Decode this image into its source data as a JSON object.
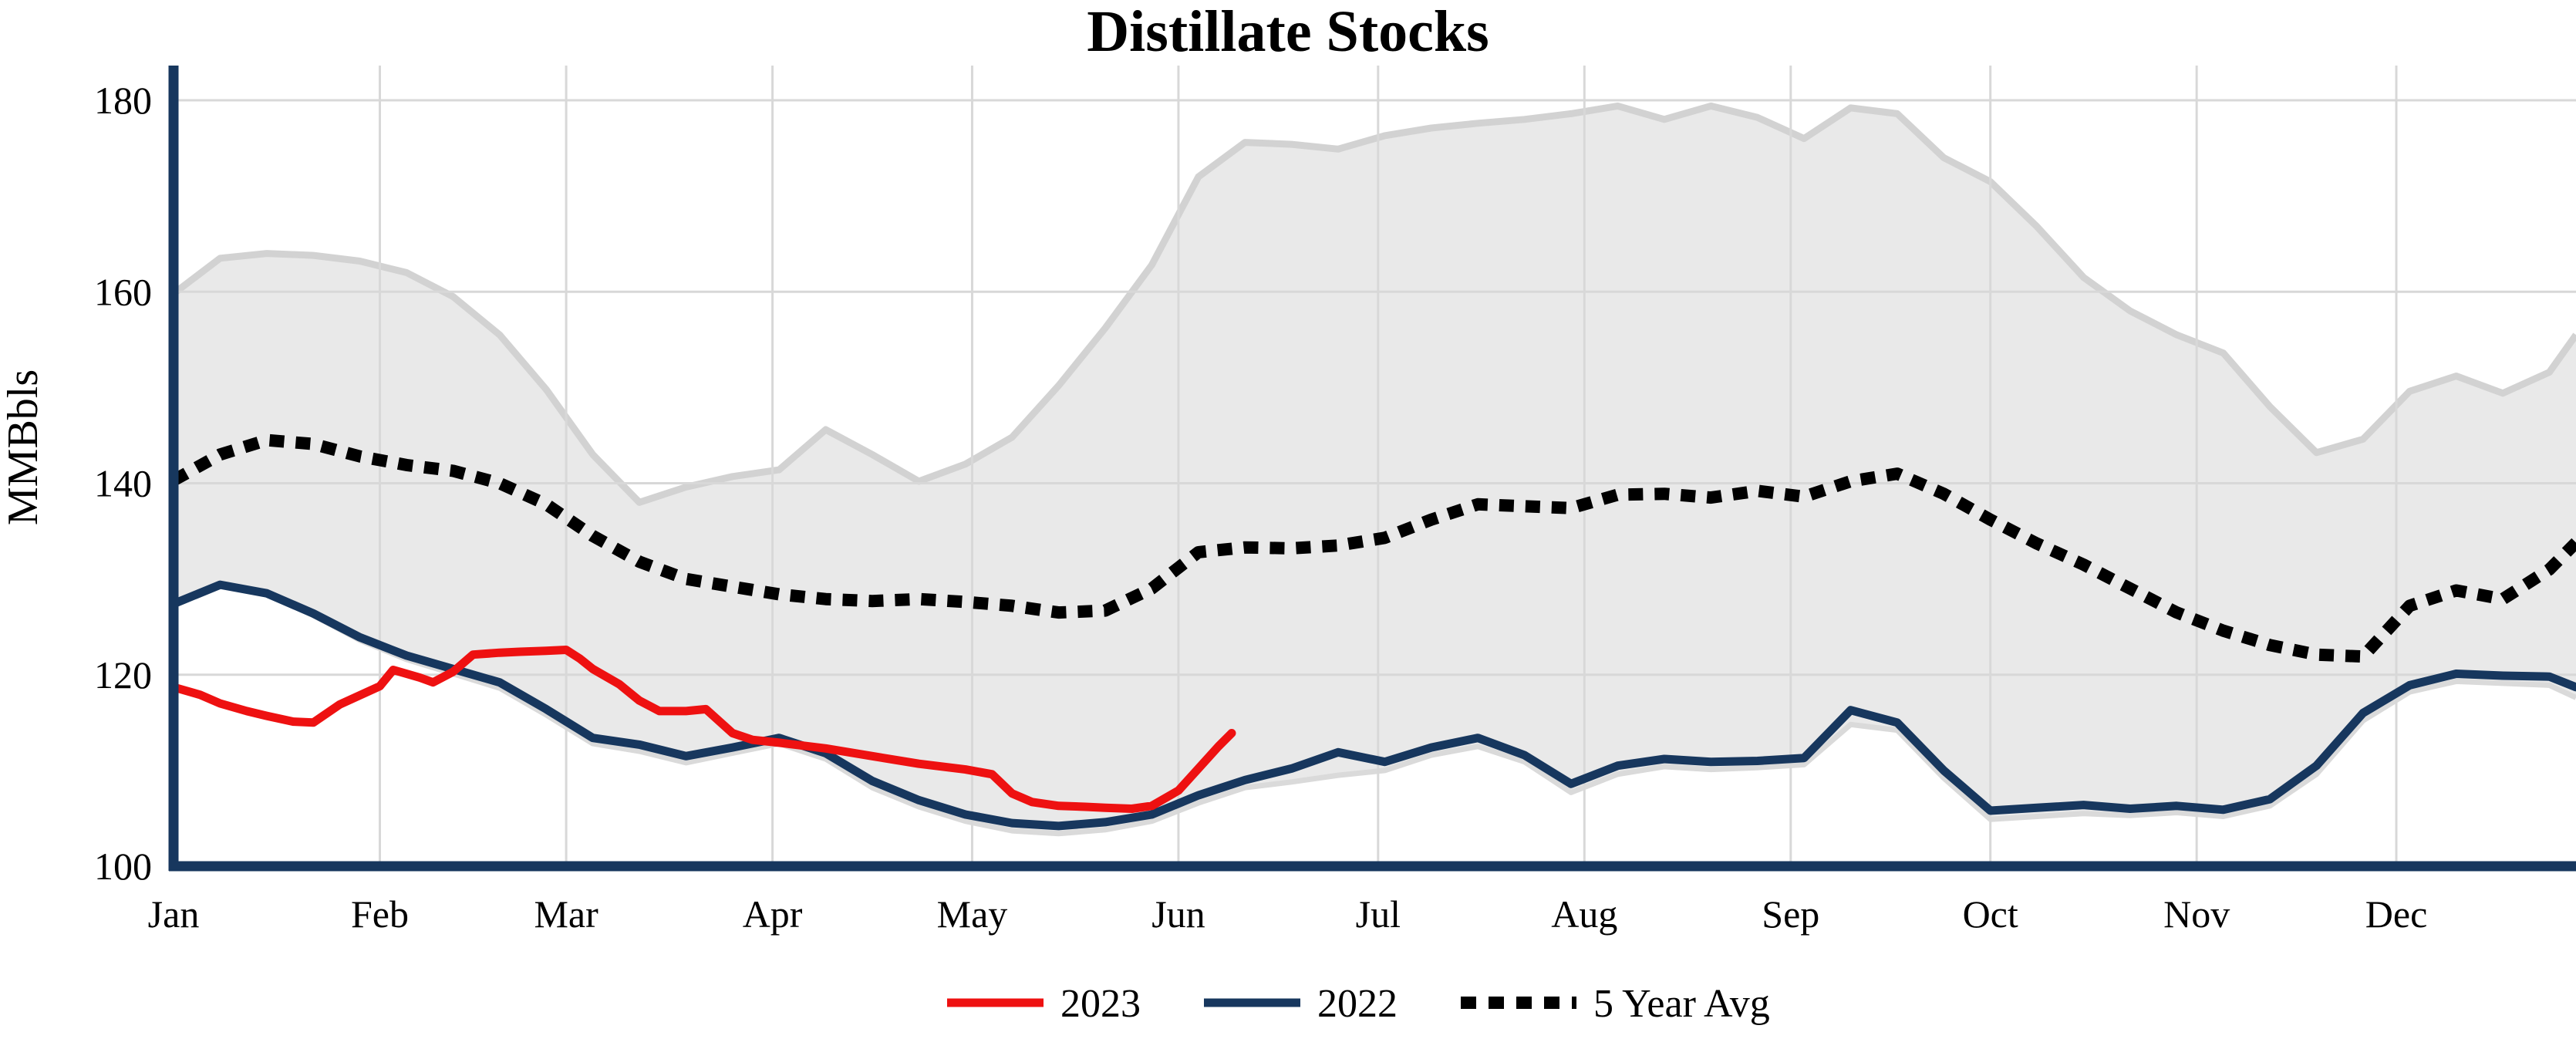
{
  "title": "Distillate Stocks",
  "y_axis": {
    "label": "MMBbls",
    "ticks": [
      100,
      120,
      140,
      160,
      180
    ],
    "min": 100,
    "max": 180
  },
  "x_axis": {
    "labels": [
      "Jan",
      "Feb",
      "Mar",
      "Apr",
      "May",
      "Jun",
      "Jul",
      "Aug",
      "Sep",
      "Oct",
      "Nov",
      "Dec"
    ],
    "month_start_days": [
      1,
      32,
      60,
      91,
      121,
      152,
      182,
      213,
      244,
      274,
      305,
      335
    ],
    "domain_days": [
      1,
      362
    ]
  },
  "legend": [
    {
      "label": "2023",
      "color": "#ee1111",
      "style": "solid"
    },
    {
      "label": "2022",
      "color": "#17375e",
      "style": "solid"
    },
    {
      "label": "5 Year Avg",
      "color": "#000000",
      "style": "dotted"
    }
  ],
  "colors": {
    "red": "#ee1111",
    "navy": "#17375e",
    "avg_dotted": "#000000",
    "band_fill": "#e9e9e9",
    "band_edge_top": "#d2d2d2",
    "band_edge_bottom": "#dadada",
    "grid": "#d8d8d8",
    "axis": "#17375e",
    "background": "#ffffff",
    "text": "#000000"
  },
  "chart_data": {
    "type": "line",
    "title": "Distillate Stocks",
    "xlabel": "",
    "ylabel": "MMBbls",
    "ylim": [
      100,
      180
    ],
    "yticks": [
      100,
      120,
      140,
      160,
      180
    ],
    "x_unit": "day_of_year",
    "xlim": [
      1,
      362
    ],
    "month_ticks": {
      "labels": [
        "Jan",
        "Feb",
        "Mar",
        "Apr",
        "May",
        "Jun",
        "Jul",
        "Aug",
        "Sep",
        "Oct",
        "Nov",
        "Dec"
      ],
      "days": [
        1,
        32,
        60,
        91,
        121,
        152,
        182,
        213,
        244,
        274,
        305,
        335
      ]
    },
    "grid": true,
    "legend_position": "bottom",
    "series": [
      {
        "name": "5 Year Range",
        "kind": "band",
        "x": [
          1,
          8,
          15,
          22,
          29,
          36,
          43,
          50,
          57,
          64,
          71,
          78,
          85,
          92,
          99,
          106,
          113,
          120,
          127,
          134,
          141,
          148,
          155,
          162,
          169,
          176,
          183,
          190,
          197,
          204,
          211,
          218,
          225,
          232,
          239,
          246,
          253,
          260,
          267,
          274,
          281,
          288,
          295,
          302,
          309,
          316,
          323,
          330,
          337,
          344,
          351,
          358,
          362
        ],
        "upper": [
          159.8,
          163.5,
          164.0,
          163.8,
          163.2,
          162.0,
          159.5,
          155.5,
          149.8,
          143.0,
          138.0,
          139.6,
          140.7,
          141.4,
          145.6,
          143.0,
          140.2,
          142.0,
          144.8,
          150.2,
          156.2,
          162.8,
          172.0,
          175.6,
          175.4,
          174.9,
          176.3,
          177.1,
          177.6,
          178.0,
          178.6,
          179.4,
          178.0,
          179.4,
          178.2,
          176.0,
          179.2,
          178.6,
          174.0,
          171.5,
          166.8,
          161.5,
          158.0,
          155.5,
          153.6,
          148.0,
          143.2,
          144.6,
          149.6,
          151.2,
          149.4,
          151.6,
          155.5
        ],
        "lower": [
          127.2,
          129.3,
          128.4,
          126.2,
          123.6,
          121.6,
          120.1,
          118.6,
          115.8,
          112.8,
          112.0,
          110.8,
          111.8,
          112.8,
          111.2,
          108.2,
          106.2,
          104.7,
          103.7,
          103.4,
          103.8,
          104.7,
          106.6,
          108.2,
          108.8,
          109.5,
          110.0,
          111.6,
          112.5,
          110.9,
          107.7,
          109.6,
          110.4,
          110.1,
          110.3,
          110.6,
          114.8,
          114.2,
          109.2,
          104.9,
          105.2,
          105.5,
          105.3,
          105.6,
          105.2,
          106.3,
          109.6,
          115.2,
          118.2,
          119.3,
          119.1,
          118.9,
          117.6
        ]
      },
      {
        "name": "5 Year Avg",
        "kind": "line",
        "style": "dotted",
        "color": "#000000",
        "x": [
          1,
          8,
          15,
          22,
          29,
          36,
          43,
          50,
          57,
          64,
          71,
          78,
          85,
          92,
          99,
          106,
          113,
          120,
          127,
          134,
          141,
          148,
          155,
          162,
          169,
          176,
          183,
          190,
          197,
          204,
          211,
          218,
          225,
          232,
          239,
          246,
          253,
          260,
          267,
          274,
          281,
          288,
          295,
          302,
          309,
          316,
          323,
          330,
          337,
          344,
          351,
          358,
          362
        ],
        "y": [
          140.3,
          143.0,
          144.5,
          144.1,
          142.8,
          141.9,
          141.3,
          140.0,
          137.8,
          134.5,
          131.8,
          130.0,
          129.2,
          128.4,
          127.9,
          127.7,
          127.9,
          127.6,
          127.2,
          126.5,
          126.7,
          129.0,
          132.8,
          133.3,
          133.2,
          133.5,
          134.3,
          136.2,
          137.8,
          137.6,
          137.4,
          138.8,
          138.9,
          138.5,
          139.2,
          138.6,
          140.2,
          141.0,
          138.9,
          136.2,
          133.7,
          131.5,
          129.0,
          126.5,
          124.6,
          123.1,
          122.1,
          121.9,
          127.2,
          128.8,
          127.9,
          131.0,
          133.8
        ]
      },
      {
        "name": "2022",
        "kind": "line",
        "style": "solid",
        "color": "#17375e",
        "x": [
          1,
          8,
          15,
          22,
          29,
          36,
          43,
          50,
          57,
          64,
          71,
          78,
          85,
          92,
          99,
          106,
          113,
          120,
          127,
          134,
          141,
          148,
          155,
          162,
          169,
          176,
          183,
          190,
          197,
          204,
          211,
          218,
          225,
          232,
          239,
          246,
          253,
          260,
          267,
          274,
          281,
          288,
          295,
          302,
          309,
          316,
          323,
          330,
          337,
          344,
          351,
          358,
          362
        ],
        "y": [
          127.4,
          129.4,
          128.5,
          126.4,
          123.9,
          122.0,
          120.6,
          119.2,
          116.4,
          113.4,
          112.7,
          111.5,
          112.4,
          113.4,
          111.8,
          108.9,
          106.9,
          105.4,
          104.5,
          104.2,
          104.6,
          105.4,
          107.4,
          109.0,
          110.2,
          111.9,
          110.9,
          112.4,
          113.4,
          111.6,
          108.6,
          110.5,
          111.2,
          110.9,
          111.0,
          111.3,
          116.3,
          115.0,
          110.0,
          105.8,
          106.1,
          106.4,
          106.0,
          106.3,
          105.9,
          107.0,
          110.5,
          116.0,
          118.9,
          120.1,
          119.9,
          119.8,
          118.7
        ]
      },
      {
        "name": "2023",
        "kind": "line",
        "style": "solid",
        "color": "#ee1111",
        "x": [
          1,
          5,
          8,
          12,
          15,
          19,
          22,
          26,
          32,
          34,
          38,
          40,
          43,
          46,
          50,
          53,
          57,
          60,
          62,
          64,
          68,
          71,
          74,
          78,
          81,
          85,
          88,
          92,
          99,
          106,
          113,
          120,
          124,
          127,
          130,
          134,
          138,
          141,
          145,
          148,
          152,
          155,
          158,
          160
        ],
        "y": [
          118.7,
          117.9,
          117.0,
          116.2,
          115.7,
          115.1,
          115.0,
          116.9,
          118.8,
          120.5,
          119.7,
          119.2,
          120.3,
          122.1,
          122.3,
          122.4,
          122.5,
          122.6,
          121.7,
          120.6,
          119.0,
          117.3,
          116.2,
          116.2,
          116.4,
          113.9,
          113.2,
          112.9,
          112.3,
          111.5,
          110.7,
          110.1,
          109.6,
          107.6,
          106.7,
          106.3,
          106.2,
          106.1,
          106.0,
          106.3,
          107.9,
          110.2,
          112.5,
          113.9
        ]
      }
    ]
  }
}
